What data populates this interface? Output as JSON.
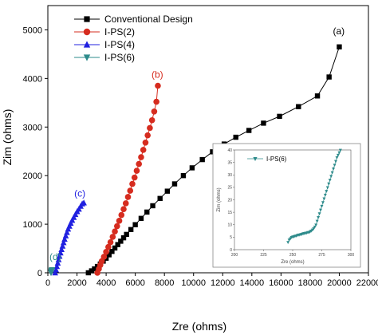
{
  "chart_data": {
    "type": "scatter",
    "xlabel": "Zre (ohms)",
    "ylabel": "Zim (ohms)",
    "xlim": [
      0,
      22000
    ],
    "ylim": [
      0,
      5500
    ],
    "x_ticks": [
      0,
      2000,
      4000,
      6000,
      8000,
      10000,
      12000,
      14000,
      16000,
      18000,
      20000,
      22000
    ],
    "y_ticks": [
      0,
      1000,
      2000,
      3000,
      4000,
      5000
    ],
    "legend_position": "top-left",
    "series": [
      {
        "name": "Conventional Design",
        "color": "#000000",
        "marker": "square",
        "annotation": "(a)",
        "x": [
          2780,
          3000,
          3200,
          3400,
          3600,
          3800,
          4000,
          4200,
          4400,
          4600,
          4800,
          5000,
          5200,
          5400,
          5700,
          6000,
          6400,
          6800,
          7200,
          7700,
          8200,
          8700,
          9300,
          9900,
          10600,
          11300,
          12100,
          12900,
          13800,
          14800,
          15900,
          17200,
          18500,
          19300,
          20000
        ],
        "y": [
          0,
          40,
          80,
          130,
          180,
          240,
          300,
          370,
          440,
          510,
          580,
          650,
          720,
          790,
          890,
          990,
          1120,
          1250,
          1380,
          1530,
          1680,
          1830,
          2000,
          2160,
          2330,
          2490,
          2650,
          2790,
          2930,
          3080,
          3220,
          3420,
          3640,
          4030,
          4650
        ]
      },
      {
        "name": "I-PS(2)",
        "color": "#d62c1f",
        "marker": "circle",
        "annotation": "(b)",
        "x": [
          3400,
          3500,
          3600,
          3700,
          3850,
          4000,
          4150,
          4300,
          4450,
          4600,
          4750,
          4900,
          5050,
          5200,
          5350,
          5500,
          5650,
          5800,
          5950,
          6100,
          6250,
          6400,
          6550,
          6700,
          6850,
          7000,
          7150,
          7300,
          7450,
          7550
        ],
        "y": [
          0,
          80,
          160,
          240,
          330,
          430,
          530,
          630,
          740,
          850,
          960,
          1070,
          1190,
          1310,
          1430,
          1560,
          1690,
          1830,
          1960,
          2100,
          2240,
          2380,
          2530,
          2680,
          2830,
          2980,
          3140,
          3320,
          3520,
          3850
        ]
      },
      {
        "name": "I-PS(4)",
        "color": "#2020e0",
        "marker": "triangle-up",
        "annotation": "(c)",
        "x": [
          500,
          560,
          620,
          680,
          740,
          800,
          870,
          940,
          1010,
          1080,
          1150,
          1230,
          1310,
          1390,
          1480,
          1570,
          1670,
          1780,
          1890,
          2010,
          2130,
          2250,
          2360,
          2470
        ],
        "y": [
          0,
          60,
          130,
          200,
          270,
          340,
          410,
          480,
          550,
          620,
          690,
          760,
          830,
          900,
          960,
          1020,
          1080,
          1140,
          1200,
          1260,
          1310,
          1370,
          1420,
          1440
        ]
      },
      {
        "name": "I-PS(6)",
        "color": "#2e8b8b",
        "marker": "triangle-down",
        "annotation": "(d)",
        "x": [
          220,
          230,
          240,
          248,
          256,
          265,
          274,
          282,
          290,
          298
        ],
        "y": [
          0,
          15,
          30,
          40,
          45,
          50,
          55,
          60,
          60,
          60
        ]
      }
    ],
    "inset": {
      "series_name": "I-PS(6)",
      "color": "#2e8b8b",
      "xlabel": "Zre (ohms)",
      "ylabel": "Zim (ohms)",
      "xlim": [
        200,
        300
      ],
      "ylim": [
        0,
        40
      ],
      "x_ticks": [
        200,
        225,
        250,
        275,
        300
      ],
      "y_ticks": [
        0,
        5,
        10,
        15,
        20,
        25,
        30,
        35,
        40
      ],
      "x": [
        246,
        247,
        248,
        249,
        250,
        251,
        252,
        253,
        254,
        255,
        256,
        257,
        258,
        259,
        260,
        261,
        262,
        263,
        264,
        265,
        266,
        267,
        268,
        269,
        270,
        271,
        272,
        273,
        274,
        275,
        276,
        277,
        278,
        279,
        280,
        281,
        282,
        283,
        284,
        285,
        286,
        287,
        288,
        289,
        290,
        291
      ],
      "y": [
        3.0,
        4.0,
        4.5,
        5.0,
        5.2,
        5.3,
        5.5,
        5.6,
        5.8,
        6.0,
        6.0,
        6.2,
        6.3,
        6.5,
        6.6,
        6.7,
        6.8,
        7.0,
        7.0,
        7.3,
        7.6,
        8.0,
        8.5,
        9.2,
        10.0,
        11.5,
        13.0,
        14.5,
        16.0,
        17.5,
        19.0,
        20.5,
        22.0,
        23.5,
        25.0,
        26.5,
        28.0,
        29.5,
        31.0,
        32.5,
        34.0,
        35.5,
        37.0,
        38.0,
        39.0,
        40.0
      ]
    }
  }
}
